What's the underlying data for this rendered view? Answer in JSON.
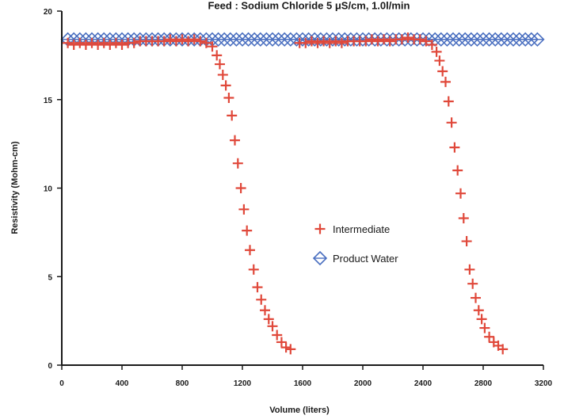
{
  "chart_data": {
    "type": "scatter",
    "title": "Feed : Sodium Chloride 5 μS/cm, 1.0l/min",
    "xlabel": "Volume (liters)",
    "ylabel": "Resistivity (Mohm-cm)",
    "xlim": [
      0,
      3200
    ],
    "ylim": [
      0,
      20
    ],
    "x_ticks": [
      "0",
      "400",
      "800",
      "1200",
      "1600",
      "2000",
      "2400",
      "2800",
      "3200"
    ],
    "y_ticks": [
      "0",
      "5",
      "10",
      "15",
      "20"
    ],
    "x_tick_values": [
      0,
      400,
      800,
      1200,
      1600,
      2000,
      2400,
      2800,
      3200
    ],
    "y_tick_values": [
      0,
      5,
      10,
      15,
      20
    ],
    "legend_position": "center-right",
    "grid": false,
    "series": [
      {
        "name": "Intermediate",
        "marker": "plus",
        "color": "#e0483a",
        "points": [
          [
            40,
            18.2
          ],
          [
            80,
            18.1
          ],
          [
            120,
            18.2
          ],
          [
            160,
            18.1
          ],
          [
            200,
            18.2
          ],
          [
            240,
            18.1
          ],
          [
            280,
            18.2
          ],
          [
            320,
            18.1
          ],
          [
            360,
            18.2
          ],
          [
            400,
            18.1
          ],
          [
            440,
            18.2
          ],
          [
            480,
            18.2
          ],
          [
            520,
            18.3
          ],
          [
            560,
            18.3
          ],
          [
            600,
            18.3
          ],
          [
            640,
            18.3
          ],
          [
            680,
            18.3
          ],
          [
            720,
            18.4
          ],
          [
            760,
            18.3
          ],
          [
            800,
            18.4
          ],
          [
            840,
            18.3
          ],
          [
            880,
            18.4
          ],
          [
            920,
            18.3
          ],
          [
            960,
            18.2
          ],
          [
            1000,
            18.0
          ],
          [
            1030,
            17.5
          ],
          [
            1050,
            17.0
          ],
          [
            1070,
            16.4
          ],
          [
            1090,
            15.8
          ],
          [
            1110,
            15.1
          ],
          [
            1130,
            14.1
          ],
          [
            1150,
            12.7
          ],
          [
            1170,
            11.4
          ],
          [
            1190,
            10.0
          ],
          [
            1210,
            8.8
          ],
          [
            1230,
            7.6
          ],
          [
            1250,
            6.5
          ],
          [
            1275,
            5.4
          ],
          [
            1300,
            4.4
          ],
          [
            1325,
            3.7
          ],
          [
            1350,
            3.1
          ],
          [
            1375,
            2.6
          ],
          [
            1400,
            2.2
          ],
          [
            1430,
            1.7
          ],
          [
            1460,
            1.3
          ],
          [
            1490,
            1.0
          ],
          [
            1520,
            0.9
          ],
          [
            1580,
            18.2
          ],
          [
            1620,
            18.2
          ],
          [
            1660,
            18.3
          ],
          [
            1700,
            18.2
          ],
          [
            1740,
            18.3
          ],
          [
            1780,
            18.2
          ],
          [
            1820,
            18.3
          ],
          [
            1860,
            18.2
          ],
          [
            1900,
            18.3
          ],
          [
            1940,
            18.3
          ],
          [
            1980,
            18.3
          ],
          [
            2020,
            18.3
          ],
          [
            2060,
            18.4
          ],
          [
            2100,
            18.3
          ],
          [
            2140,
            18.4
          ],
          [
            2180,
            18.3
          ],
          [
            2220,
            18.4
          ],
          [
            2260,
            18.4
          ],
          [
            2300,
            18.5
          ],
          [
            2340,
            18.4
          ],
          [
            2380,
            18.4
          ],
          [
            2420,
            18.3
          ],
          [
            2460,
            18.1
          ],
          [
            2490,
            17.7
          ],
          [
            2510,
            17.2
          ],
          [
            2530,
            16.6
          ],
          [
            2550,
            16.0
          ],
          [
            2570,
            14.9
          ],
          [
            2590,
            13.7
          ],
          [
            2610,
            12.3
          ],
          [
            2630,
            11.0
          ],
          [
            2650,
            9.7
          ],
          [
            2670,
            8.3
          ],
          [
            2690,
            7.0
          ],
          [
            2710,
            5.4
          ],
          [
            2730,
            4.6
          ],
          [
            2750,
            3.8
          ],
          [
            2770,
            3.1
          ],
          [
            2790,
            2.6
          ],
          [
            2810,
            2.1
          ],
          [
            2840,
            1.6
          ],
          [
            2870,
            1.3
          ],
          [
            2900,
            1.1
          ],
          [
            2930,
            0.9
          ]
        ]
      },
      {
        "name": "Product Water",
        "marker": "diamond",
        "color": "#4a6fc0",
        "points": [
          [
            40,
            18.4
          ],
          [
            80,
            18.4
          ],
          [
            120,
            18.4
          ],
          [
            160,
            18.4
          ],
          [
            200,
            18.4
          ],
          [
            240,
            18.4
          ],
          [
            280,
            18.4
          ],
          [
            320,
            18.4
          ],
          [
            360,
            18.4
          ],
          [
            400,
            18.4
          ],
          [
            440,
            18.4
          ],
          [
            480,
            18.4
          ],
          [
            520,
            18.4
          ],
          [
            560,
            18.4
          ],
          [
            600,
            18.4
          ],
          [
            640,
            18.4
          ],
          [
            680,
            18.4
          ],
          [
            720,
            18.4
          ],
          [
            760,
            18.4
          ],
          [
            800,
            18.4
          ],
          [
            840,
            18.4
          ],
          [
            880,
            18.4
          ],
          [
            920,
            18.4
          ],
          [
            960,
            18.4
          ],
          [
            1000,
            18.4
          ],
          [
            1040,
            18.4
          ],
          [
            1080,
            18.4
          ],
          [
            1120,
            18.4
          ],
          [
            1160,
            18.4
          ],
          [
            1200,
            18.4
          ],
          [
            1240,
            18.4
          ],
          [
            1280,
            18.4
          ],
          [
            1320,
            18.4
          ],
          [
            1360,
            18.4
          ],
          [
            1400,
            18.4
          ],
          [
            1440,
            18.4
          ],
          [
            1480,
            18.4
          ],
          [
            1520,
            18.4
          ],
          [
            1560,
            18.4
          ],
          [
            1600,
            18.4
          ],
          [
            1640,
            18.4
          ],
          [
            1680,
            18.4
          ],
          [
            1720,
            18.4
          ],
          [
            1760,
            18.4
          ],
          [
            1800,
            18.4
          ],
          [
            1840,
            18.4
          ],
          [
            1880,
            18.4
          ],
          [
            1920,
            18.4
          ],
          [
            1960,
            18.4
          ],
          [
            2000,
            18.4
          ],
          [
            2040,
            18.4
          ],
          [
            2080,
            18.4
          ],
          [
            2120,
            18.4
          ],
          [
            2160,
            18.4
          ],
          [
            2200,
            18.4
          ],
          [
            2240,
            18.4
          ],
          [
            2280,
            18.4
          ],
          [
            2320,
            18.4
          ],
          [
            2360,
            18.4
          ],
          [
            2400,
            18.4
          ],
          [
            2440,
            18.4
          ],
          [
            2480,
            18.4
          ],
          [
            2520,
            18.4
          ],
          [
            2560,
            18.4
          ],
          [
            2600,
            18.4
          ],
          [
            2640,
            18.4
          ],
          [
            2680,
            18.4
          ],
          [
            2720,
            18.4
          ],
          [
            2760,
            18.4
          ],
          [
            2800,
            18.4
          ],
          [
            2840,
            18.4
          ],
          [
            2880,
            18.4
          ],
          [
            2920,
            18.4
          ],
          [
            2960,
            18.4
          ],
          [
            3000,
            18.4
          ],
          [
            3040,
            18.4
          ],
          [
            3080,
            18.4
          ],
          [
            3120,
            18.4
          ],
          [
            3160,
            18.4
          ]
        ]
      }
    ]
  }
}
